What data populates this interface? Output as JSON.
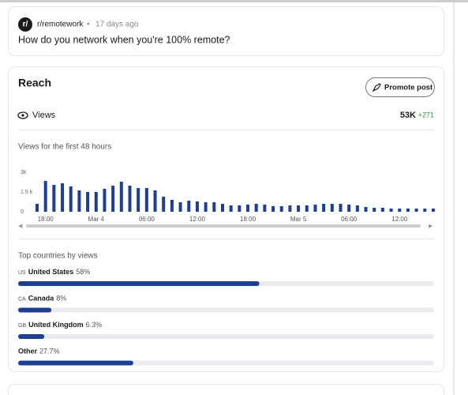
{
  "header": {
    "community": "r/remotework",
    "separator": "•",
    "age": "17 days ago",
    "title": "How do you network when you're 100% remote?"
  },
  "reach": {
    "title": "Reach",
    "button": "Promote post",
    "views_label": "Views",
    "views_total": "53K",
    "views_delta": "+271"
  },
  "views_chart": {
    "type": "bar",
    "title": "Views for the first 48 hours",
    "color": "#1c3f94",
    "categories": [
      null,
      "18:00",
      null,
      null,
      null,
      null,
      null,
      "Mar 4",
      null,
      null,
      null,
      null,
      null,
      "06:00",
      null,
      null,
      null,
      null,
      null,
      "12:00",
      null,
      null,
      null,
      null,
      null,
      "18:00",
      null,
      null,
      null,
      null,
      null,
      "Mar 5",
      null,
      null,
      null,
      null,
      null,
      "06:00",
      null,
      null,
      null,
      null,
      null,
      "12:00",
      null,
      null,
      null,
      null
    ],
    "values": [
      600,
      2340,
      2040,
      2160,
      1920,
      1620,
      1500,
      1500,
      1740,
      1980,
      2280,
      1980,
      1800,
      1800,
      1620,
      1140,
      900,
      720,
      840,
      780,
      720,
      720,
      600,
      480,
      480,
      540,
      600,
      540,
      420,
      420,
      480,
      480,
      480,
      540,
      600,
      600,
      600,
      540,
      480,
      360,
      300,
      300,
      240,
      240,
      240,
      240,
      240,
      240
    ],
    "ylim": [
      0,
      3000
    ],
    "yticks": [
      0,
      {
        "value": 1500,
        "label": "1.5 k"
      },
      {
        "value": 3000,
        "label": "3k"
      }
    ]
  },
  "countries": {
    "title": "Top countries by views",
    "items": [
      {
        "code": "US",
        "name": "United States",
        "value": 58,
        "value_label": "58%"
      },
      {
        "code": "CA",
        "name": "Canada",
        "value": 8,
        "value_label": "8%"
      },
      {
        "code": "GB",
        "name": "United Kingdom",
        "value": 6.3,
        "value_label": "6.3%"
      },
      {
        "name": "Other",
        "value": 27.7,
        "value_label": "27.7%"
      }
    ]
  }
}
